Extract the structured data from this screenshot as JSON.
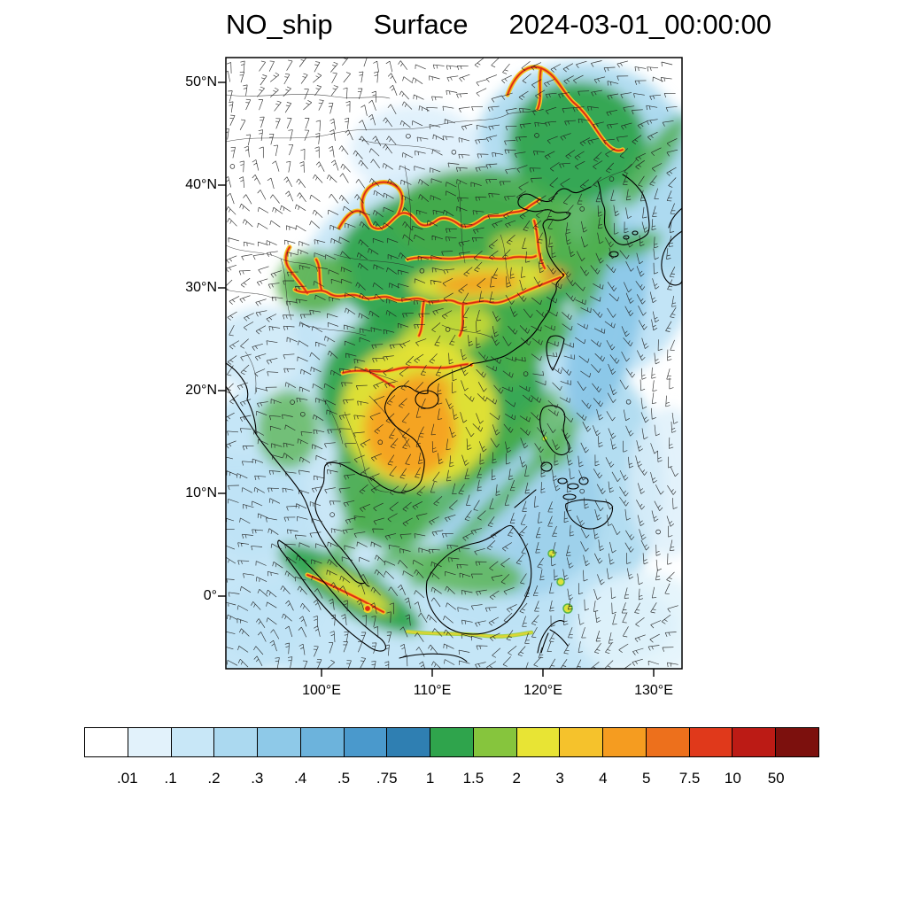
{
  "title": {
    "variable": "NO_ship",
    "level": "Surface",
    "datetime": "2024-03-01_00:00:00"
  },
  "map": {
    "lat_ticks": [
      "50°N",
      "40°N",
      "30°N",
      "20°N",
      "10°N",
      "0°"
    ],
    "lon_ticks": [
      "100°E",
      "110°E",
      "120°E",
      "130°E"
    ]
  },
  "colorbar": {
    "labels": [
      ".01",
      ".1",
      ".2",
      ".3",
      ".4",
      ".5",
      ".75",
      "1",
      "1.5",
      "2",
      "3",
      "4",
      "5",
      "7.5",
      "10",
      "50"
    ],
    "colors": [
      "#ffffff",
      "#e2f2fb",
      "#c8e7f7",
      "#abd9f0",
      "#8ec9e8",
      "#6cb3dc",
      "#4a99cc",
      "#2f7fb2",
      "#2fa44c",
      "#86c53d",
      "#e8e434",
      "#f5c22c",
      "#f59c20",
      "#ed701c",
      "#e0391b",
      "#bc1b15",
      "#7c100d"
    ]
  },
  "chart_data": {
    "type": "heatmap",
    "title": "NO_ship Surface 2024-03-01_00:00:00",
    "region": {
      "lon_range_deg_east": [
        91,
        133
      ],
      "lat_range_deg_north": [
        -7,
        52
      ]
    },
    "colorbar_levels": [
      0.01,
      0.1,
      0.2,
      0.3,
      0.4,
      0.5,
      0.75,
      1,
      1.5,
      2,
      3,
      4,
      5,
      7.5,
      10,
      50
    ],
    "overlays": [
      "wind-barbs",
      "coastlines",
      "high-emission-shipping-lane-lines"
    ]
  }
}
